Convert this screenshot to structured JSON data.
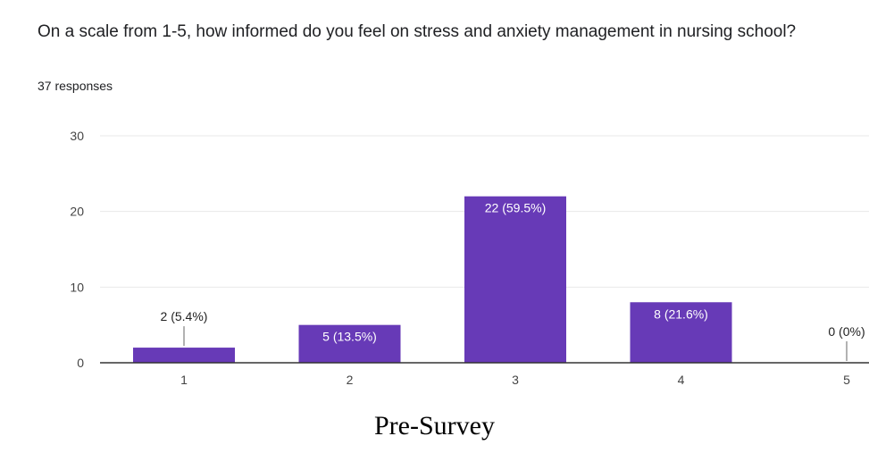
{
  "question": {
    "title": "On a scale from 1-5, how informed do you feel on stress and anxiety management in nursing school?",
    "responses": "37 responses"
  },
  "caption": "Pre-Survey",
  "colors": {
    "bar": "#673ab7",
    "grid": "#e8e8e8",
    "axis": "#333333",
    "label_inside": "#ffffff",
    "label_outside": "#222222"
  },
  "chart_data": {
    "type": "bar",
    "categories": [
      "1",
      "2",
      "3",
      "4",
      "5"
    ],
    "values": [
      2,
      5,
      22,
      8,
      0
    ],
    "data_labels": [
      "2 (5.4%)",
      "5 (13.5%)",
      "22 (59.5%)",
      "8 (21.6%)",
      "0 (0%)"
    ],
    "y_ticks": [
      "0",
      "10",
      "20",
      "30"
    ],
    "ylim": [
      0,
      30
    ],
    "grid": true,
    "legend": "none",
    "title": "On a scale from 1-5, how informed do you feel on stress and anxiety management in nursing school?",
    "xlabel": "",
    "ylabel": ""
  }
}
